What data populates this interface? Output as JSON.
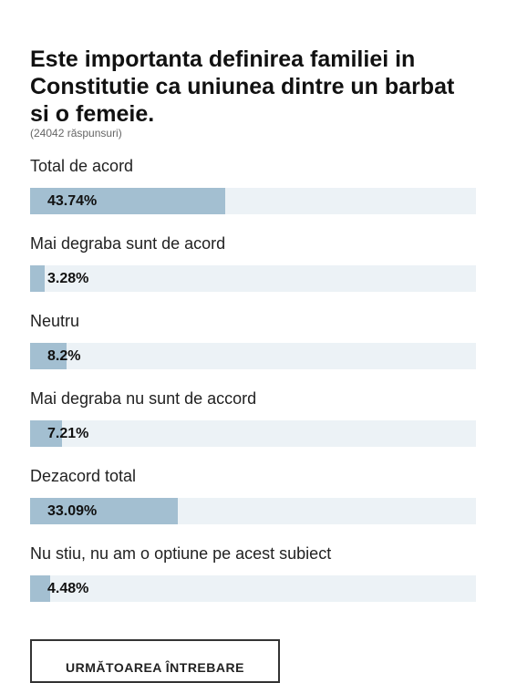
{
  "poll": {
    "title": "Este importanta definirea familiei in Constitutie ca uniunea dintre un barbat si o femeie.",
    "response_count": "(24042 răspunsuri)",
    "options": [
      {
        "label": "Total de acord",
        "percent_text": "43.74%",
        "percent": 43.74
      },
      {
        "label": "Mai degraba sunt de acord",
        "percent_text": "3.28%",
        "percent": 3.28
      },
      {
        "label": "Neutru",
        "percent_text": "8.2%",
        "percent": 8.2
      },
      {
        "label": "Mai degraba nu sunt de accord",
        "percent_text": "7.21%",
        "percent": 7.21
      },
      {
        "label": "Dezacord total",
        "percent_text": "33.09%",
        "percent": 33.09
      },
      {
        "label": "Nu stiu, nu am o optiune pe acest subiect",
        "percent_text": "4.48%",
        "percent": 4.48
      }
    ],
    "colors": {
      "bar_fill": "#a3bfd1",
      "bar_track": "#ecf2f6"
    }
  },
  "next_button": {
    "label": "URMĂTOAREA ÎNTREBARE"
  }
}
